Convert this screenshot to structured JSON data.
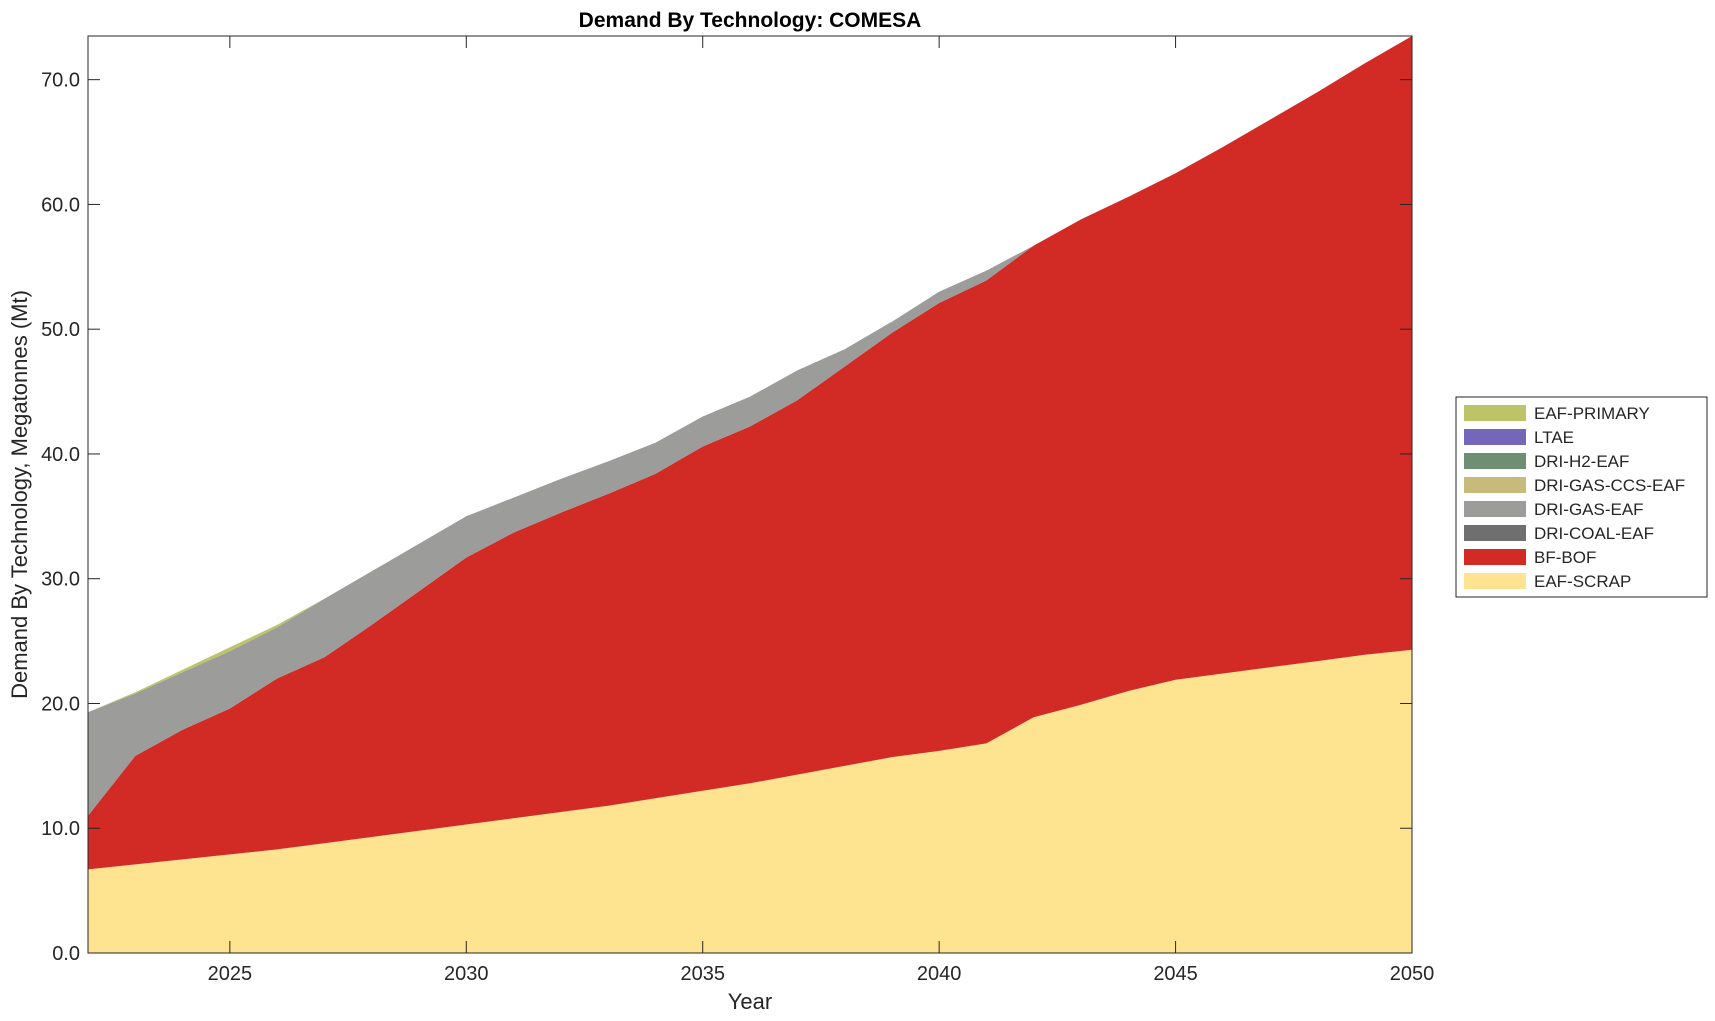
{
  "chart_data": {
    "type": "area",
    "stacked": true,
    "title": "Demand By Technology: COMESA",
    "xlabel": "Year",
    "ylabel": "Demand By Technology, Megatonnes (Mt)",
    "xlim": [
      2022,
      2050
    ],
    "ylim": [
      0,
      73.5
    ],
    "x_ticks": [
      2025,
      2030,
      2035,
      2040,
      2045,
      2050
    ],
    "y_ticks": [
      0,
      10,
      20,
      30,
      40,
      50,
      60,
      70
    ],
    "y_tick_labels": [
      "0.0",
      "10.0",
      "20.0",
      "30.0",
      "40.0",
      "50.0",
      "60.0",
      "70.0"
    ],
    "legend_position": "right",
    "x": [
      2022,
      2023,
      2024,
      2025,
      2026,
      2027,
      2028,
      2029,
      2030,
      2031,
      2032,
      2033,
      2034,
      2035,
      2036,
      2037,
      2038,
      2039,
      2040,
      2041,
      2042,
      2043,
      2044,
      2045,
      2046,
      2047,
      2048,
      2049,
      2050
    ],
    "series": [
      {
        "name": "EAF-SCRAP",
        "color": "#fee391",
        "values": [
          6.7,
          7.1,
          7.5,
          7.9,
          8.3,
          8.8,
          9.3,
          9.8,
          10.3,
          10.8,
          11.3,
          11.8,
          12.4,
          13.0,
          13.6,
          14.3,
          15.0,
          15.7,
          16.2,
          16.8,
          18.9,
          19.9,
          21.0,
          21.9,
          22.4,
          22.9,
          23.4,
          23.9,
          24.3
        ]
      },
      {
        "name": "BF-BOF",
        "color": "#d22a25",
        "values": [
          4.3,
          8.7,
          10.4,
          11.7,
          13.7,
          14.9,
          17.0,
          19.2,
          21.4,
          22.9,
          24.0,
          25.0,
          26.0,
          27.6,
          28.6,
          30.0,
          32.0,
          34.0,
          35.9,
          37.1,
          37.8,
          38.9,
          39.6,
          40.6,
          42.2,
          43.9,
          45.6,
          47.4,
          49.2
        ]
      },
      {
        "name": "DRI-COAL-EAF",
        "color": "#6f6f6f",
        "values": [
          0,
          0,
          0,
          0,
          0,
          0,
          0,
          0,
          0,
          0,
          0,
          0,
          0,
          0,
          0,
          0,
          0,
          0,
          0,
          0,
          0,
          0,
          0,
          0,
          0,
          0,
          0,
          0,
          0
        ]
      },
      {
        "name": "DRI-GAS-EAF",
        "color": "#9c9c9a",
        "values": [
          8.3,
          5.0,
          4.6,
          4.6,
          4.1,
          4.7,
          4.3,
          3.8,
          3.3,
          2.8,
          2.7,
          2.6,
          2.5,
          2.4,
          2.4,
          2.4,
          1.4,
          0.9,
          0.9,
          0.8,
          0,
          0,
          0,
          0,
          0,
          0,
          0,
          0,
          0
        ]
      },
      {
        "name": "DRI-GAS-CCS-EAF",
        "color": "#c7bb7c",
        "values": [
          0,
          0,
          0,
          0,
          0,
          0,
          0,
          0,
          0,
          0,
          0,
          0,
          0,
          0,
          0,
          0,
          0,
          0,
          0,
          0,
          0,
          0,
          0,
          0,
          0,
          0,
          0,
          0,
          0
        ]
      },
      {
        "name": "DRI-H2-EAF",
        "color": "#6e8f73",
        "values": [
          0,
          0,
          0,
          0,
          0,
          0,
          0,
          0,
          0,
          0,
          0,
          0,
          0,
          0,
          0,
          0,
          0,
          0,
          0,
          0,
          0,
          0,
          0,
          0,
          0,
          0,
          0,
          0,
          0
        ]
      },
      {
        "name": "LTAE",
        "color": "#7466b8",
        "values": [
          0,
          0,
          0,
          0,
          0,
          0,
          0,
          0,
          0,
          0,
          0,
          0,
          0,
          0,
          0,
          0,
          0,
          0,
          0,
          0,
          0,
          0,
          0,
          0,
          0,
          0,
          0,
          0,
          0
        ]
      },
      {
        "name": "EAF-PRIMARY",
        "color": "#bcc468",
        "values": [
          0,
          0.1,
          0.2,
          0.3,
          0.2,
          0,
          0,
          0,
          0,
          0,
          0,
          0,
          0,
          0,
          0,
          0,
          0,
          0,
          0,
          0,
          0,
          0,
          0,
          0,
          0,
          0,
          0,
          0,
          0
        ]
      }
    ],
    "legend_order": [
      "EAF-PRIMARY",
      "LTAE",
      "DRI-H2-EAF",
      "DRI-GAS-CCS-EAF",
      "DRI-GAS-EAF",
      "DRI-COAL-EAF",
      "BF-BOF",
      "EAF-SCRAP"
    ]
  }
}
